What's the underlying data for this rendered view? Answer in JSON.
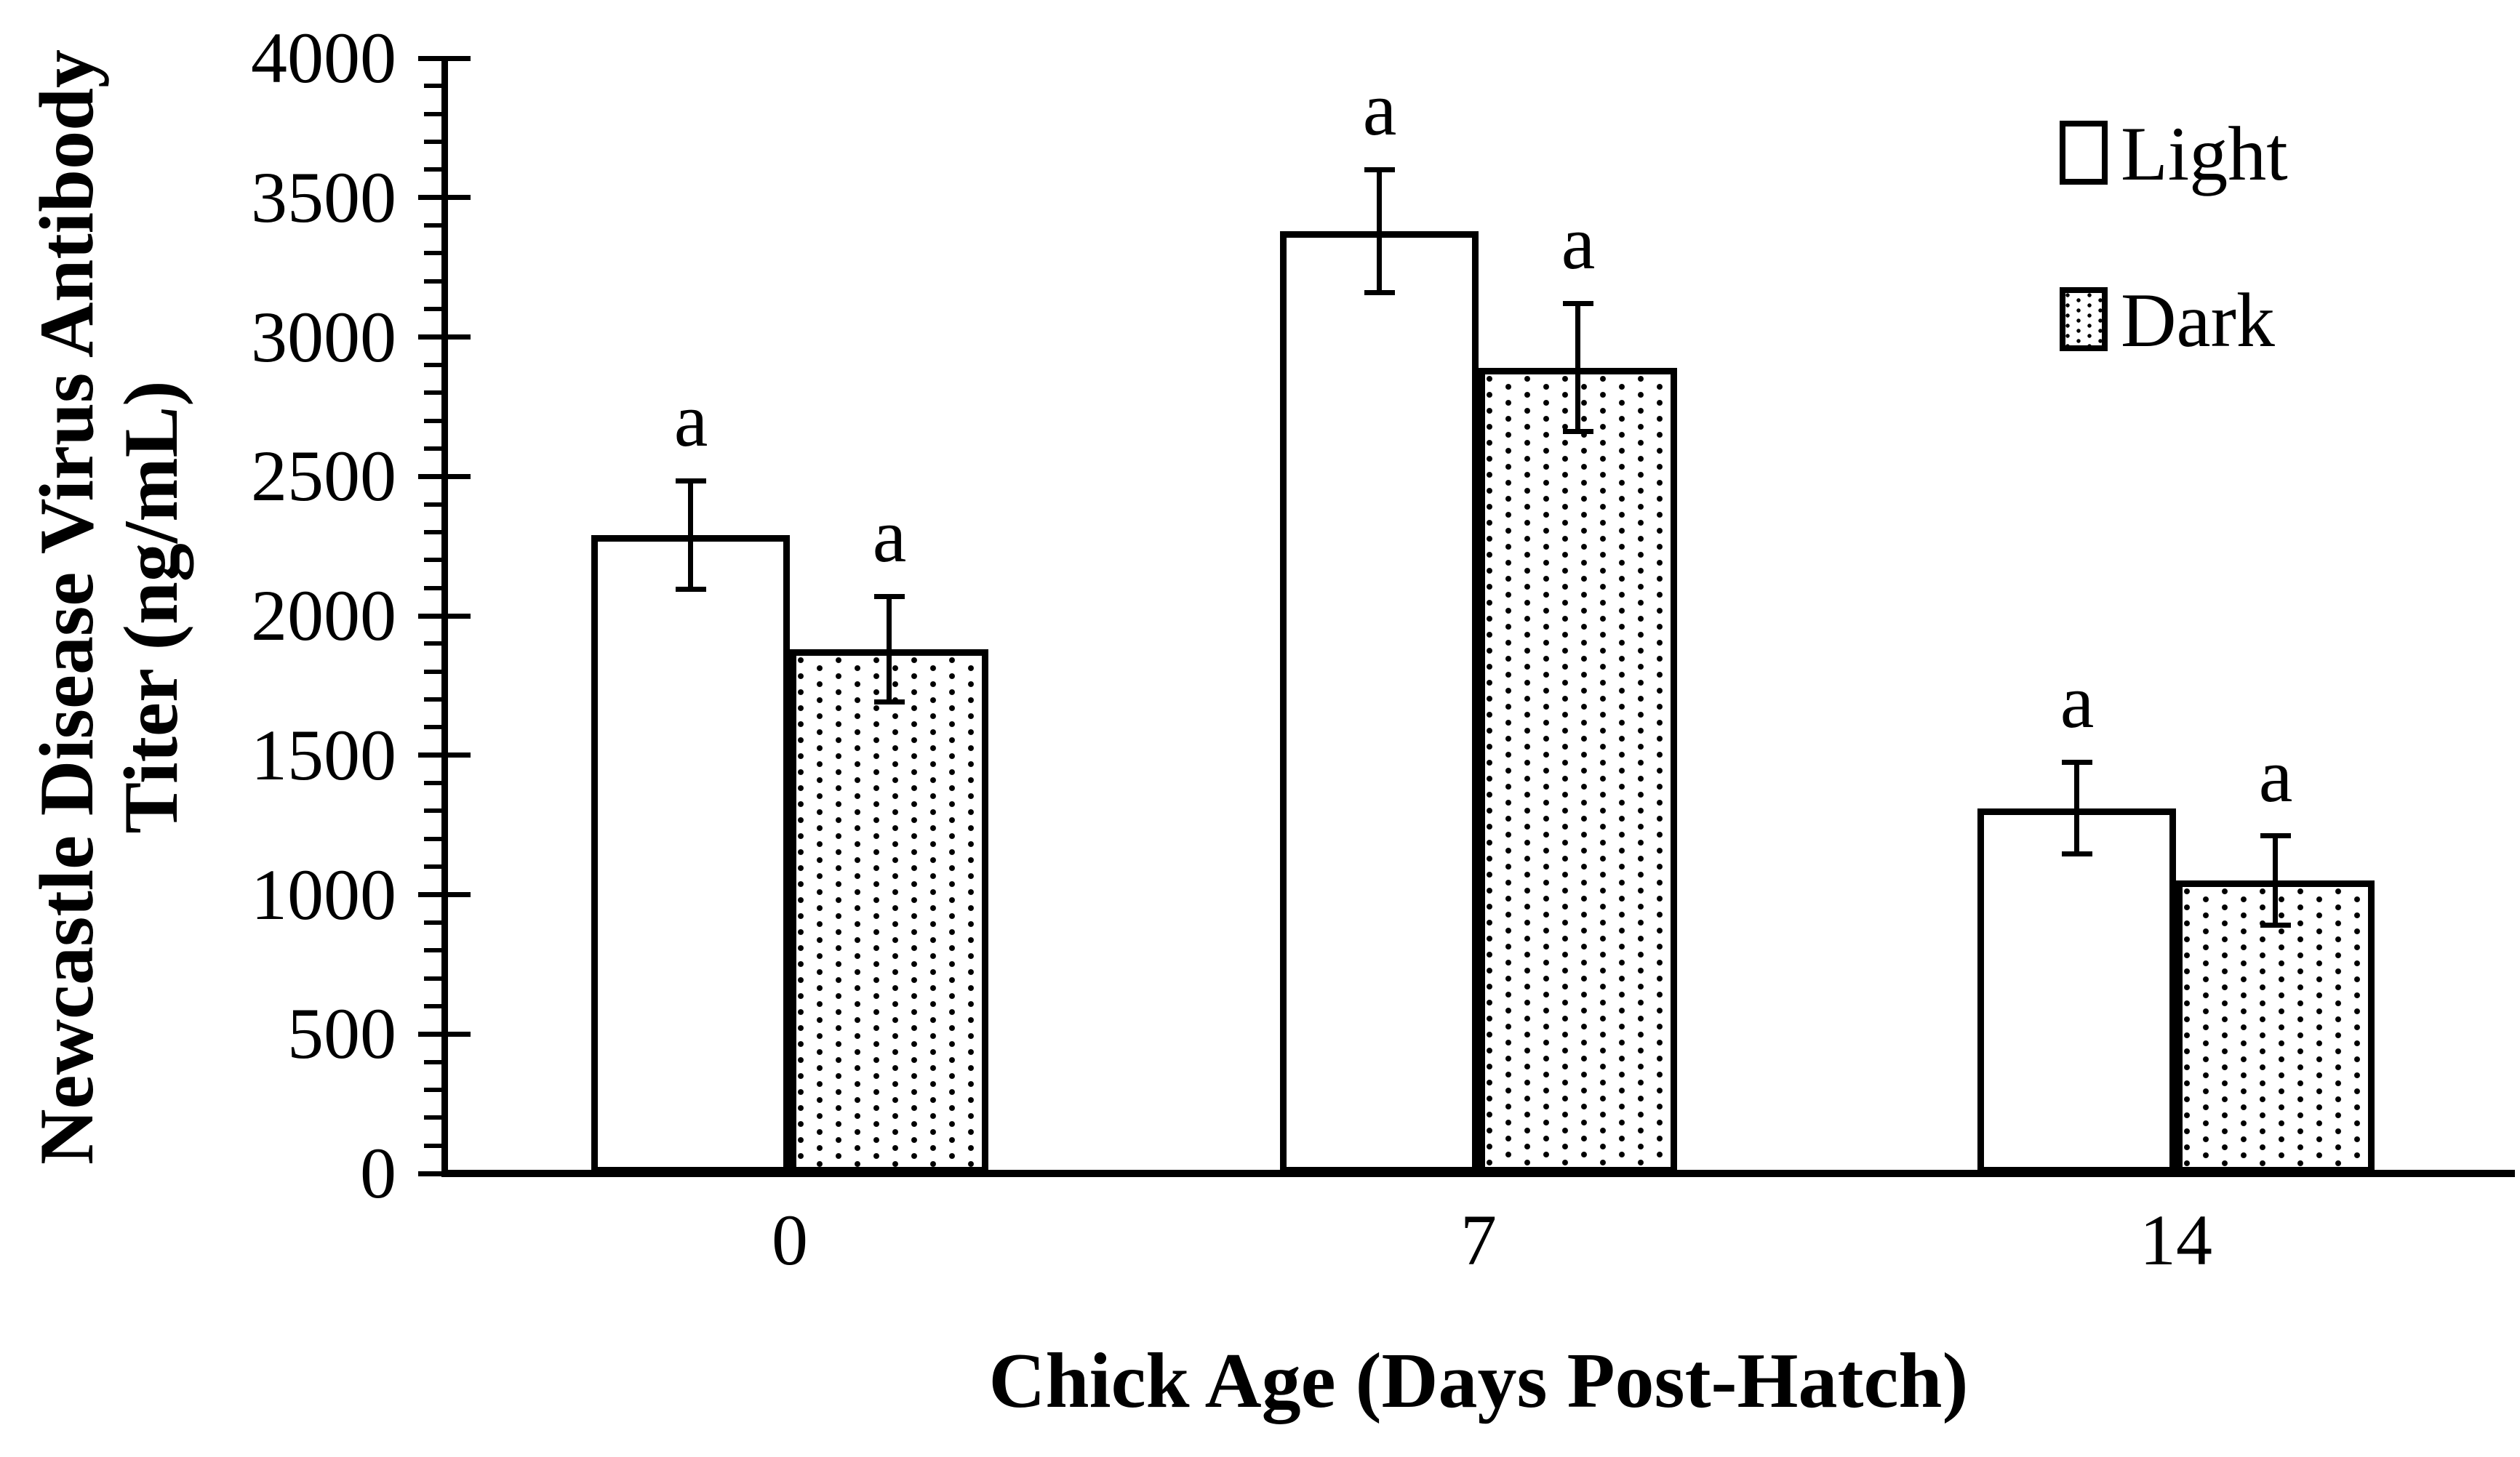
{
  "figure": {
    "background_color": "#ffffff",
    "ink_color": "#000000"
  },
  "chart_data": {
    "type": "bar",
    "title": "",
    "xlabel": "Chick Age (Days Post-Hatch)",
    "ylabel": "Newcastle Disease Virus Antibody Titer (ng/mL)",
    "ylabel_lines": [
      "Newcastle Disease Virus Antibody",
      "Titer (ng/mL)"
    ],
    "categories": [
      "0",
      "7",
      "14"
    ],
    "series": [
      {
        "name": "Light",
        "pattern": "open",
        "values": [
          2290,
          3380,
          1310
        ],
        "error_bars": [
          195,
          220,
          165
        ],
        "sig_letters": [
          "a",
          "a",
          "a"
        ]
      },
      {
        "name": "Dark",
        "pattern": "dotted",
        "values": [
          1880,
          2890,
          1050
        ],
        "error_bars": [
          190,
          230,
          160
        ],
        "sig_letters": [
          "a",
          "a",
          "a"
        ]
      }
    ],
    "y_axis": {
      "min": 0,
      "max": 4000,
      "major_tick_step": 500,
      "minor_tick_step": 100,
      "tick_labels": [
        "0",
        "500",
        "1000",
        "1500",
        "2000",
        "2500",
        "3000",
        "3500",
        "4000"
      ]
    },
    "x_axis": {
      "tick_labels": [
        "0",
        "7",
        "14"
      ]
    },
    "legend": {
      "position": "top-right",
      "entries": [
        "Light",
        "Dark"
      ]
    },
    "grid": false,
    "error_bar_style": "plus-minus with caps",
    "units": "ng/mL"
  }
}
